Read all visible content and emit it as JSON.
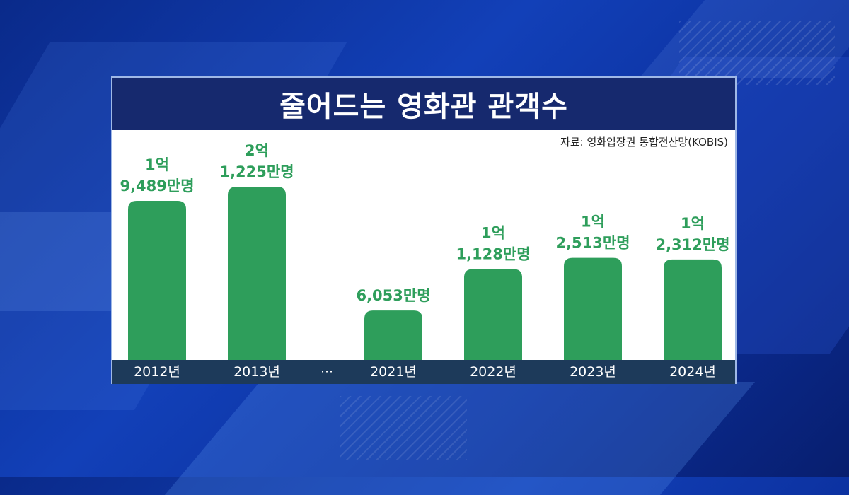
{
  "chart_data": {
    "type": "bar",
    "title": "줄어드는 영화관 관객수",
    "source": "자료: 영화입장권 통합전산망(KOBIS)",
    "ellipsis": "···",
    "categories": [
      "2012년",
      "2013년",
      "2021년",
      "2022년",
      "2023년",
      "2024년"
    ],
    "values": [
      19489,
      21225,
      6053,
      11128,
      12513,
      12312
    ],
    "unit": "만명",
    "label_lines": [
      [
        "1억",
        "9,489만명"
      ],
      [
        "2억",
        "1,225만명"
      ],
      [
        "6,053만명"
      ],
      [
        "1억",
        "1,128만명"
      ],
      [
        "1억",
        "2,513만명"
      ],
      [
        "1억",
        "2,312만명"
      ]
    ],
    "bar_color": "#2e9e5b",
    "label_color": "#2e9e5b"
  }
}
